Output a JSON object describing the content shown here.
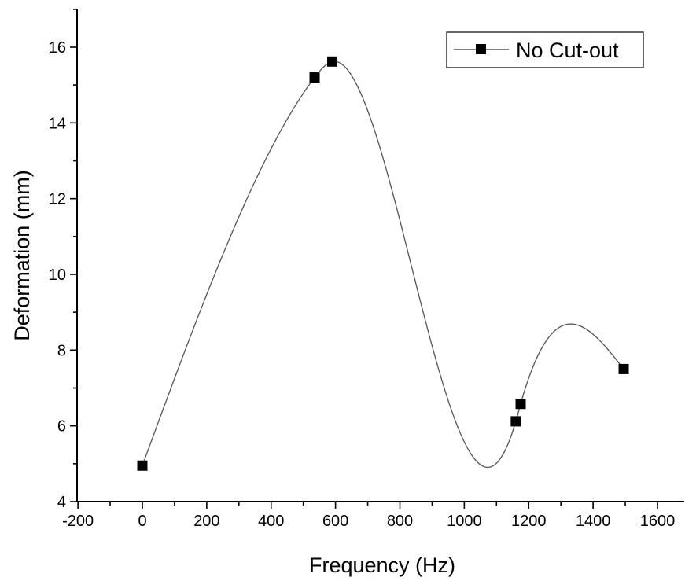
{
  "chart_data": {
    "type": "line",
    "xlabel": "Frequency (Hz)",
    "ylabel": "Deformation (mm)",
    "xlim": [
      -200,
      1700
    ],
    "ylim": [
      4,
      17
    ],
    "x_major_ticks": [
      -200,
      0,
      200,
      400,
      600,
      800,
      1000,
      1200,
      1400,
      1600
    ],
    "x_minor_step": 100,
    "y_major_ticks": [
      4,
      6,
      8,
      10,
      12,
      14,
      16
    ],
    "y_minor_step": 1,
    "x_tick_labels": [
      "-200",
      "0",
      "200",
      "400",
      "600",
      "800",
      "1000",
      "1200",
      "1400",
      "1600"
    ],
    "y_tick_labels": [
      "4",
      "6",
      "8",
      "10",
      "12",
      "14",
      "16"
    ],
    "grid": false,
    "legend_position": "top-right",
    "series": [
      {
        "name": "No Cut-out",
        "marker": "square",
        "line_style": "smooth spline",
        "color": "#000000",
        "x": [
          0,
          535,
          590,
          1160,
          1175,
          1495
        ],
        "y": [
          4.95,
          15.2,
          15.62,
          6.12,
          6.58,
          7.5
        ]
      }
    ]
  }
}
